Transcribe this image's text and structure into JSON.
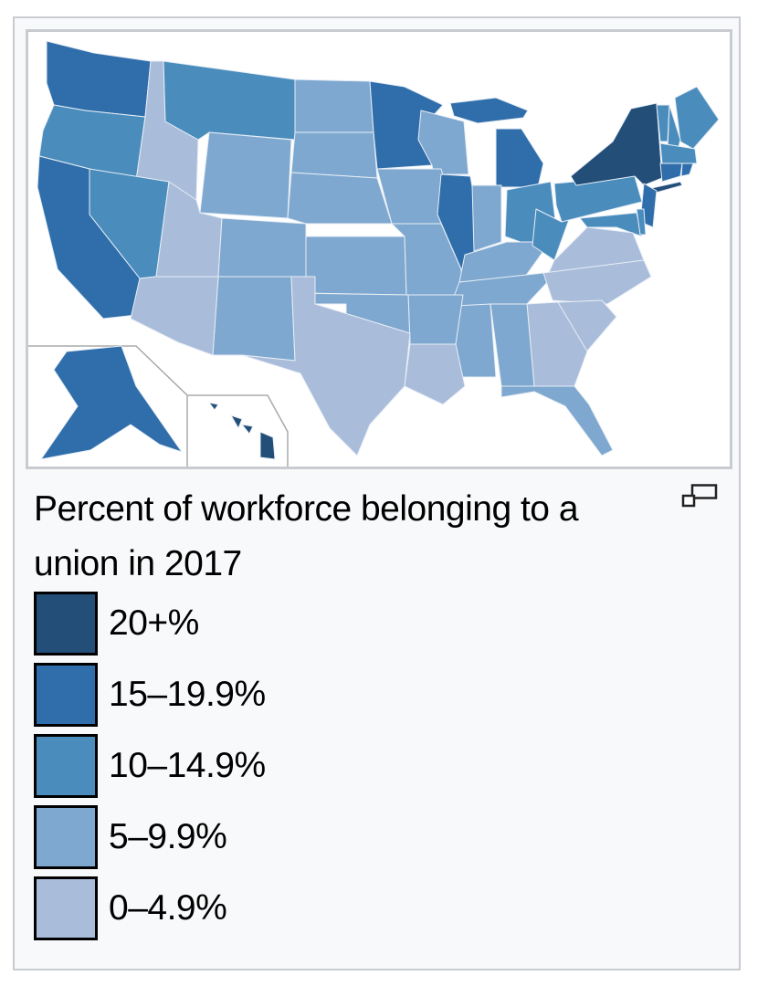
{
  "caption": {
    "line1": "Percent of workforce belonging to a",
    "line2": "union in 2017"
  },
  "enlarge_icon": "enlarge-icon",
  "legend": [
    {
      "label": "20+%",
      "color": "#224e78"
    },
    {
      "label": "15–19.9%",
      "color": "#2f6eaa"
    },
    {
      "label": "10–14.9%",
      "color": "#4a8dbd"
    },
    {
      "label": "5–9.9%",
      "color": "#7ea8cf"
    },
    {
      "label": "0–4.9%",
      "color": "#a9bcda"
    }
  ],
  "state_classes": {
    "NY": 0,
    "HI": 0,
    "WA": 1,
    "CA": 1,
    "MN": 1,
    "MI": 1,
    "IL": 1,
    "NJ": 1,
    "AK": 1,
    "CT": 1,
    "RI": 1,
    "OR": 2,
    "MT": 2,
    "NV": 2,
    "OH": 2,
    "PA": 2,
    "WV": 2,
    "MD": 2,
    "ME": 2,
    "VT": 2,
    "NH": 2,
    "MA": 2,
    "DE": 2,
    "ND": 3,
    "SD": 3,
    "WY": 3,
    "NE": 3,
    "CO": 3,
    "NM": 3,
    "KS": 3,
    "IA": 3,
    "WI": 3,
    "MO": 3,
    "IN": 3,
    "KY": 3,
    "TN": 3,
    "OK": 3,
    "AR": 3,
    "MS": 3,
    "AL": 3,
    "FL": 3,
    "ID": 4,
    "UT": 4,
    "AZ": 4,
    "TX": 4,
    "LA": 4,
    "GA": 4,
    "SC": 4,
    "NC": 4,
    "VA": 4
  }
}
